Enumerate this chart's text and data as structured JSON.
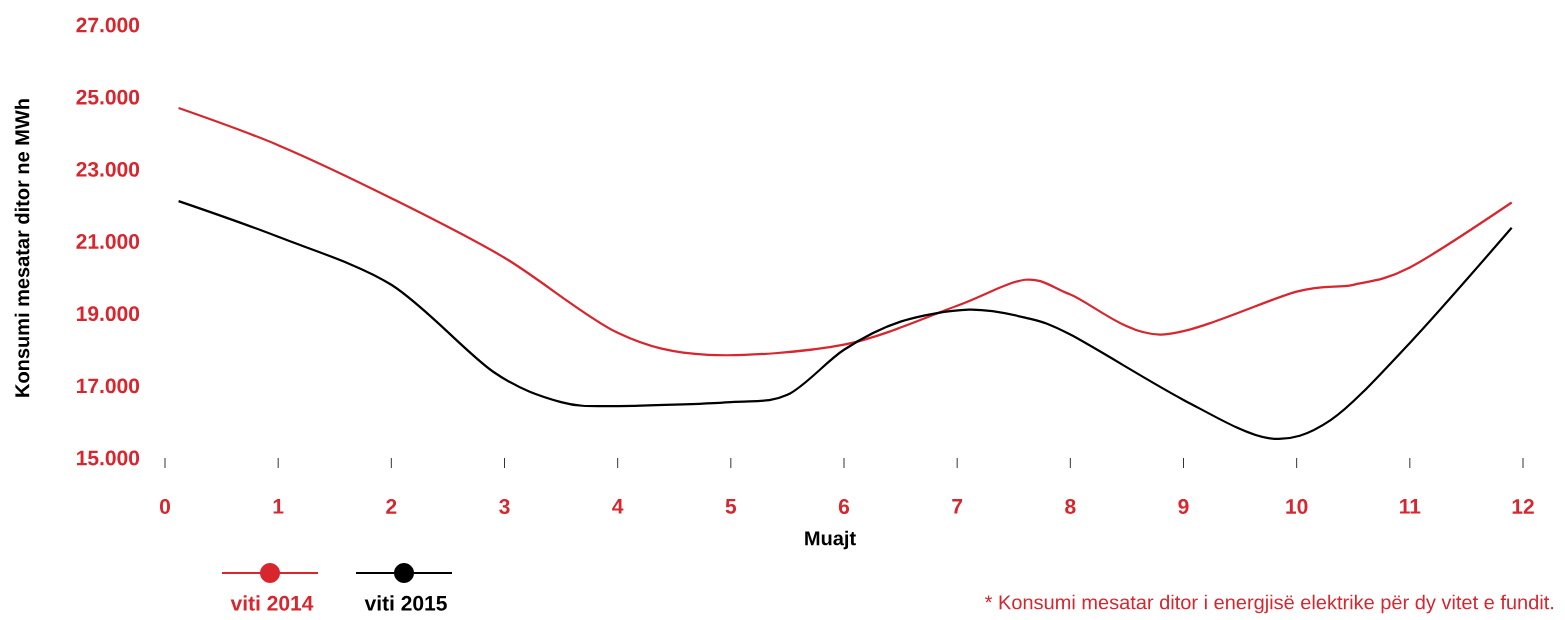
{
  "chart_data": {
    "type": "line",
    "xlabel": "Muajt",
    "ylabel": "Konsumi mesatar ditor ne MWh",
    "xlim": [
      0,
      12
    ],
    "ylim": [
      15000,
      27000
    ],
    "xticks": [
      0,
      1,
      2,
      3,
      4,
      5,
      6,
      7,
      8,
      9,
      10,
      11,
      12
    ],
    "yticks": [
      {
        "value": 15000,
        "label": "15.000"
      },
      {
        "value": 17000,
        "label": "17.000"
      },
      {
        "value": 19000,
        "label": "19.000"
      },
      {
        "value": 21000,
        "label": "21.000"
      },
      {
        "value": 23000,
        "label": "23.000"
      },
      {
        "value": 25000,
        "label": "25.000"
      },
      {
        "value": 27000,
        "label": "27.000"
      }
    ],
    "grid": false,
    "legend": "bottom left",
    "annotations": [
      "* Konsumi mesatar ditor i energjisë elektrike për dy vitet e fundit."
    ],
    "series": [
      {
        "name": "viti 2014",
        "color": "#d7262e",
        "x": [
          0.12,
          1,
          2,
          3,
          4,
          4.8,
          6,
          7,
          7.6,
          8,
          8.8,
          10,
          10.5,
          11,
          11.9
        ],
        "values": [
          24700,
          23670,
          22200,
          20550,
          18470,
          17860,
          18140,
          19220,
          19940,
          19530,
          18420,
          19610,
          19800,
          20280,
          22080
        ]
      },
      {
        "name": "viti 2015",
        "color": "#000000",
        "x": [
          0.12,
          1,
          2,
          2.9,
          3.5,
          4,
          5,
          5.5,
          6,
          6.5,
          7.1,
          7.6,
          8,
          9,
          9.75,
          10.3,
          11,
          11.9
        ],
        "values": [
          22120,
          21130,
          19800,
          17390,
          16550,
          16440,
          16550,
          16750,
          18000,
          18780,
          19110,
          18890,
          18420,
          16610,
          15550,
          16050,
          18190,
          21380
        ]
      }
    ]
  }
}
